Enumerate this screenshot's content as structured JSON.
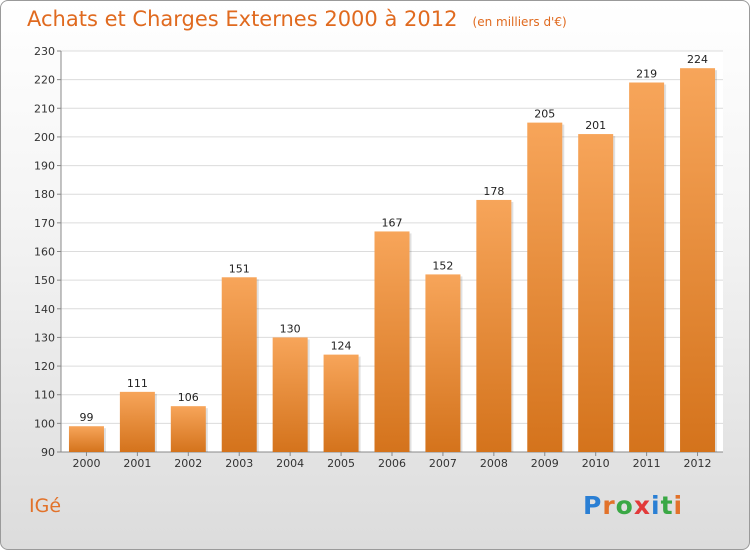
{
  "header": {
    "title": "Achats et Charges Externes 2000 à 2012",
    "subtitle": "(en milliers d'€)"
  },
  "place": "IGé",
  "logo": {
    "text": "Proxiti",
    "letter_colors": [
      "#2a7fd4",
      "#e2722a",
      "#3aa845",
      "#e23a3a",
      "#2a7fd4",
      "#3aa845",
      "#e2722a"
    ]
  },
  "colors": {
    "bar_top": "#f7a55a",
    "bar_bottom": "#d4731c",
    "title": "#e06a1f"
  },
  "chart_data": {
    "type": "bar",
    "title": "Achats et Charges Externes 2000 à 2012",
    "subtitle": "(en milliers d'€)",
    "categories": [
      "2000",
      "2001",
      "2002",
      "2003",
      "2004",
      "2005",
      "2006",
      "2007",
      "2008",
      "2009",
      "2010",
      "2011",
      "2012"
    ],
    "values": [
      99,
      111,
      106,
      151,
      130,
      124,
      167,
      152,
      178,
      205,
      201,
      219,
      224
    ],
    "ylim": [
      90,
      230
    ],
    "yticks": [
      90,
      100,
      110,
      120,
      130,
      140,
      150,
      160,
      170,
      180,
      190,
      200,
      210,
      220,
      230
    ],
    "grid": true,
    "legend": "none"
  }
}
